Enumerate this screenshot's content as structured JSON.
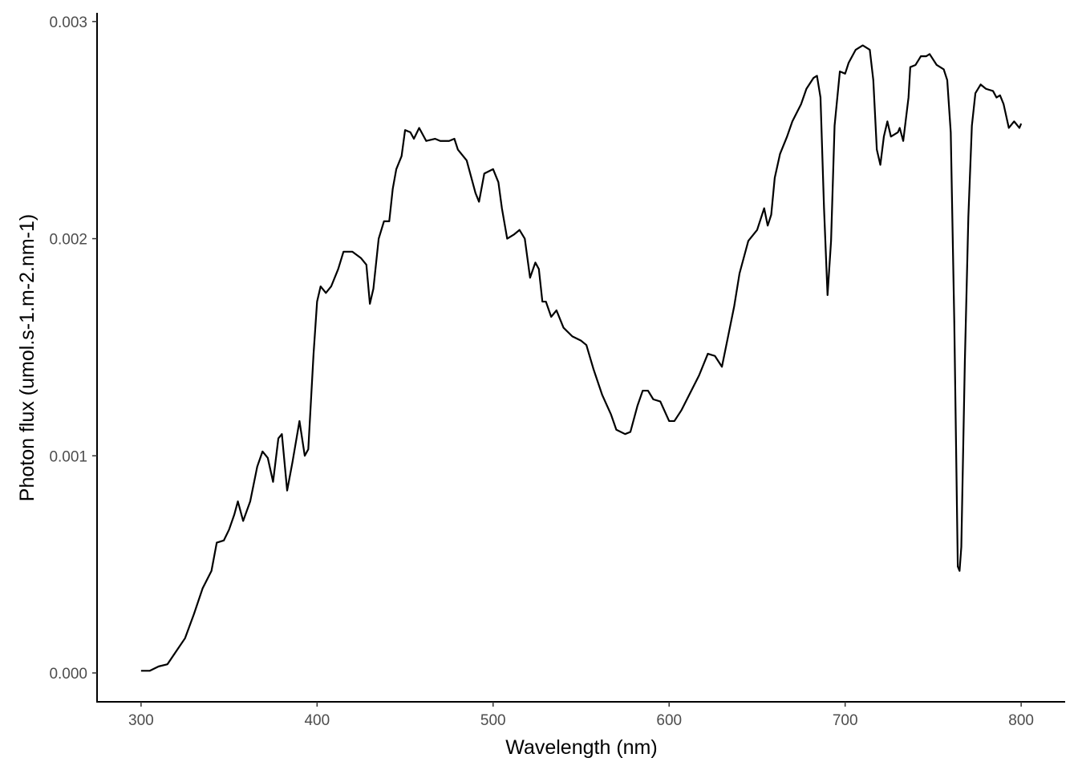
{
  "chart_data": {
    "type": "line",
    "x_label": "Wavelength (nm)",
    "y_label": "Photon flux (umol.s-1.m-2.nm-1)",
    "color": "#000000",
    "xlim": [
      275,
      825
    ],
    "ylim": [
      -0.000133,
      0.00304
    ],
    "xticks": [
      300,
      400,
      500,
      600,
      700,
      800
    ],
    "yticks": [
      {
        "value": 0,
        "label": "0.000"
      },
      {
        "value": 0.001,
        "label": "0.001"
      },
      {
        "value": 0.002,
        "label": "0.002"
      },
      {
        "value": 0.003,
        "label": "0.003"
      }
    ],
    "x": [
      300,
      305,
      310,
      315,
      320,
      325,
      330,
      335,
      340,
      343,
      347,
      350,
      353,
      355,
      358,
      362,
      366,
      369,
      372,
      375,
      378,
      380,
      383,
      386,
      390,
      393,
      395,
      398,
      400,
      402,
      405,
      408,
      412,
      415,
      420,
      425,
      428,
      430,
      432,
      435,
      438,
      441,
      443,
      445,
      448,
      450,
      453,
      455,
      458,
      462,
      467,
      470,
      475,
      478,
      480,
      485,
      490,
      492,
      495,
      500,
      503,
      505,
      508,
      512,
      515,
      518,
      521,
      524,
      526,
      528,
      530,
      533,
      536,
      540,
      545,
      550,
      553,
      557,
      562,
      567,
      570,
      575,
      578,
      582,
      585,
      588,
      591,
      595,
      600,
      603,
      607,
      612,
      617,
      622,
      626,
      630,
      633,
      637,
      640,
      645,
      650,
      654,
      656,
      658,
      660,
      663,
      667,
      670,
      675,
      678,
      682,
      684,
      686,
      688,
      690,
      692,
      694,
      697,
      700,
      702,
      706,
      710,
      714,
      716,
      718,
      720,
      722,
      724,
      726,
      730,
      731,
      733,
      736,
      737,
      740,
      743,
      746,
      748,
      752,
      756,
      758,
      760,
      762,
      764,
      765,
      766,
      768,
      770,
      772,
      774,
      777,
      780,
      784,
      786,
      788,
      790,
      793,
      796,
      799,
      800
    ],
    "values": [
      1e-05,
      1e-05,
      3e-05,
      4e-05,
      0.0001,
      0.00016,
      0.00027,
      0.00039,
      0.00047,
      0.0006,
      0.00061,
      0.00066,
      0.00073,
      0.00079,
      0.0007,
      0.00079,
      0.00095,
      0.00102,
      0.00099,
      0.00088,
      0.00108,
      0.0011,
      0.00084,
      0.00097,
      0.00116,
      0.001,
      0.00103,
      0.00147,
      0.00171,
      0.00178,
      0.00175,
      0.00178,
      0.00186,
      0.00194,
      0.00194,
      0.00191,
      0.00188,
      0.0017,
      0.00177,
      0.002,
      0.00208,
      0.00208,
      0.00223,
      0.00232,
      0.00238,
      0.0025,
      0.00249,
      0.00246,
      0.00251,
      0.00245,
      0.00246,
      0.00245,
      0.00245,
      0.00246,
      0.00241,
      0.00236,
      0.00221,
      0.00217,
      0.0023,
      0.00232,
      0.00226,
      0.00214,
      0.002,
      0.00202,
      0.00204,
      0.002,
      0.00182,
      0.00189,
      0.00186,
      0.00171,
      0.00171,
      0.00164,
      0.00167,
      0.00159,
      0.00155,
      0.00153,
      0.00151,
      0.0014,
      0.00128,
      0.00119,
      0.00112,
      0.0011,
      0.00111,
      0.00123,
      0.0013,
      0.0013,
      0.00126,
      0.00125,
      0.00116,
      0.00116,
      0.00121,
      0.00129,
      0.00137,
      0.00147,
      0.00146,
      0.00141,
      0.00153,
      0.00169,
      0.00184,
      0.00199,
      0.00204,
      0.00214,
      0.00206,
      0.00211,
      0.00228,
      0.00239,
      0.00247,
      0.00254,
      0.00262,
      0.00269,
      0.00274,
      0.00275,
      0.00265,
      0.00214,
      0.00174,
      0.00199,
      0.00252,
      0.00277,
      0.00276,
      0.00281,
      0.00287,
      0.00289,
      0.00287,
      0.00273,
      0.00241,
      0.00234,
      0.00247,
      0.00254,
      0.00247,
      0.00249,
      0.00251,
      0.00245,
      0.00265,
      0.00279,
      0.0028,
      0.00284,
      0.00284,
      0.00285,
      0.0028,
      0.00278,
      0.00273,
      0.00249,
      0.00162,
      0.00049,
      0.00047,
      0.00058,
      0.00143,
      0.0021,
      0.00252,
      0.00267,
      0.00271,
      0.00269,
      0.00268,
      0.00265,
      0.00266,
      0.00262,
      0.00251,
      0.00254,
      0.00251,
      0.00253
    ]
  }
}
